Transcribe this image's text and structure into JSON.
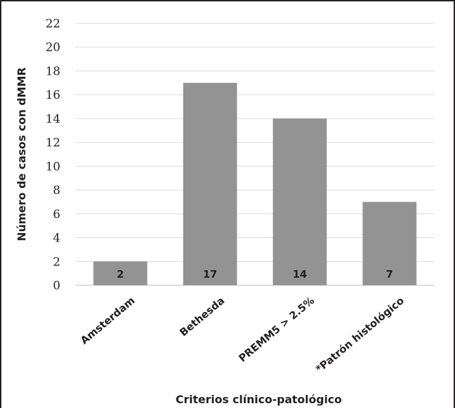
{
  "chart_data": {
    "type": "bar",
    "categories": [
      "Amsterdam",
      "Bethesda",
      "PREMM5 > 2.5%",
      "*Patrón histológico"
    ],
    "values": [
      2,
      17,
      14,
      7
    ],
    "data_labels": [
      "2",
      "17",
      "14",
      "7"
    ],
    "xlabel": "Criterios clínico-patológico",
    "ylabel": "Número de casos con dMMR",
    "ylim": [
      0,
      22
    ],
    "yticks": [
      0,
      2,
      4,
      6,
      8,
      10,
      12,
      14,
      16,
      18,
      20,
      22
    ],
    "grid": true,
    "legend": "none",
    "colors": {
      "bar": "#939393",
      "grid": "#d9d9d9",
      "text": "#231f20"
    }
  }
}
